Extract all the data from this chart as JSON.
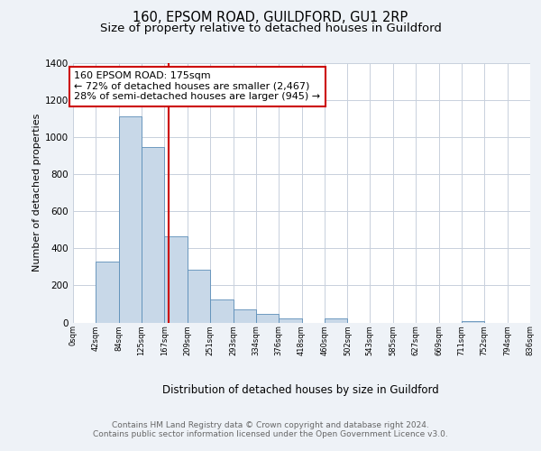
{
  "title1": "160, EPSOM ROAD, GUILDFORD, GU1 2RP",
  "title2": "Size of property relative to detached houses in Guildford",
  "xlabel": "Distribution of detached houses by size in Guildford",
  "ylabel": "Number of detached properties",
  "bar_edges": [
    0,
    42,
    84,
    125,
    167,
    209,
    251,
    293,
    334,
    376,
    418,
    460,
    502,
    543,
    585,
    627,
    669,
    711,
    752,
    794,
    836
  ],
  "bar_heights": [
    0,
    327,
    1112,
    947,
    465,
    286,
    126,
    70,
    47,
    20,
    0,
    22,
    0,
    0,
    0,
    0,
    0,
    8,
    0,
    0
  ],
  "bar_color": "#c8d8e8",
  "bar_edge_color": "#5b8db8",
  "property_size": 175,
  "property_line_color": "#cc0000",
  "annotation_line1": "160 EPSOM ROAD: 175sqm",
  "annotation_line2": "← 72% of detached houses are smaller (2,467)",
  "annotation_line3": "28% of semi-detached houses are larger (945) →",
  "annotation_box_color": "#ffffff",
  "annotation_box_edge_color": "#cc0000",
  "ylim": [
    0,
    1400
  ],
  "yticks": [
    0,
    200,
    400,
    600,
    800,
    1000,
    1200,
    1400
  ],
  "tick_labels": [
    "0sqm",
    "42sqm",
    "84sqm",
    "125sqm",
    "167sqm",
    "209sqm",
    "251sqm",
    "293sqm",
    "334sqm",
    "376sqm",
    "418sqm",
    "460sqm",
    "502sqm",
    "543sqm",
    "585sqm",
    "627sqm",
    "669sqm",
    "711sqm",
    "752sqm",
    "794sqm",
    "836sqm"
  ],
  "footer1": "Contains HM Land Registry data © Crown copyright and database right 2024.",
  "footer2": "Contains public sector information licensed under the Open Government Licence v3.0.",
  "background_color": "#eef2f7",
  "plot_background_color": "#ffffff",
  "grid_color": "#c8d0dc",
  "title_fontsize": 10.5,
  "subtitle_fontsize": 9.5,
  "axis_label_fontsize": 8,
  "tick_fontsize": 6,
  "annotation_fontsize": 8,
  "footer_fontsize": 6.5
}
